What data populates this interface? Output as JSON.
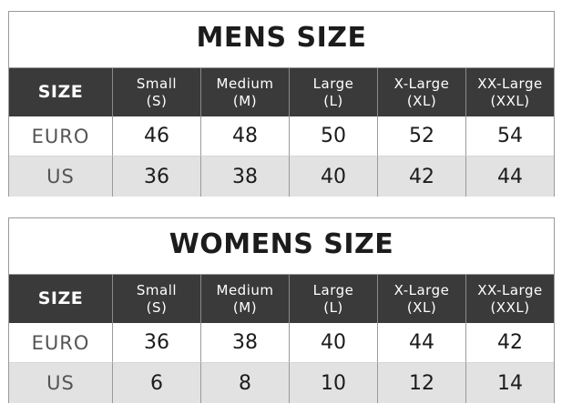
{
  "mens": {
    "title": "MENS SIZE",
    "header_label": "SIZE",
    "columns": [
      {
        "name": "Small",
        "abbr": "(S)"
      },
      {
        "name": "Medium",
        "abbr": "(M)"
      },
      {
        "name": "Large",
        "abbr": "(L)"
      },
      {
        "name": "X-Large",
        "abbr": "(XL)"
      },
      {
        "name": "XX-Large",
        "abbr": "(XXL)"
      }
    ],
    "rows": [
      {
        "label": "EURO",
        "values": [
          "46",
          "48",
          "50",
          "52",
          "54"
        ]
      },
      {
        "label": "US",
        "values": [
          "36",
          "38",
          "40",
          "42",
          "44"
        ]
      }
    ]
  },
  "womens": {
    "title": "WOMENS SIZE",
    "header_label": "SIZE",
    "columns": [
      {
        "name": "Small",
        "abbr": "(S)"
      },
      {
        "name": "Medium",
        "abbr": "(M)"
      },
      {
        "name": "Large",
        "abbr": "(L)"
      },
      {
        "name": "X-Large",
        "abbr": "(XL)"
      },
      {
        "name": "XX-Large",
        "abbr": "(XXL)"
      }
    ],
    "rows": [
      {
        "label": "EURO",
        "values": [
          "36",
          "38",
          "40",
          "44",
          "42"
        ]
      },
      {
        "label": "US",
        "values": [
          "6",
          "8",
          "10",
          "12",
          "14"
        ]
      }
    ]
  }
}
